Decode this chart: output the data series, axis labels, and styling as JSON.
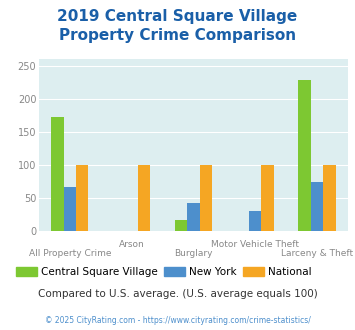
{
  "title": "2019 Central Square Village\nProperty Crime Comparison",
  "categories": [
    "All Property Crime",
    "Arson",
    "Burglary",
    "Motor Vehicle Theft",
    "Larceny & Theft"
  ],
  "series": {
    "Central Square Village": [
      172,
      0,
      17,
      0,
      229
    ],
    "New York": [
      66,
      0,
      42,
      30,
      75
    ],
    "National": [
      100,
      100,
      100,
      100,
      100
    ]
  },
  "colors": {
    "Central Square Village": "#7dc832",
    "New York": "#4d8fcc",
    "National": "#f5a623"
  },
  "ylim": [
    0,
    260
  ],
  "yticks": [
    0,
    50,
    100,
    150,
    200,
    250
  ],
  "title_color": "#1a5fa8",
  "title_fontsize": 11,
  "axis_bg_color": "#ddeef0",
  "footer_text": "Compared to U.S. average. (U.S. average equals 100)",
  "copyright_text": "© 2025 CityRating.com - https://www.cityrating.com/crime-statistics/",
  "footer_color": "#333333",
  "copyright_color": "#4d8fcc",
  "bar_width": 0.2,
  "group_positions": [
    0,
    1,
    2,
    3,
    4
  ],
  "xlim": [
    -0.5,
    4.5
  ]
}
